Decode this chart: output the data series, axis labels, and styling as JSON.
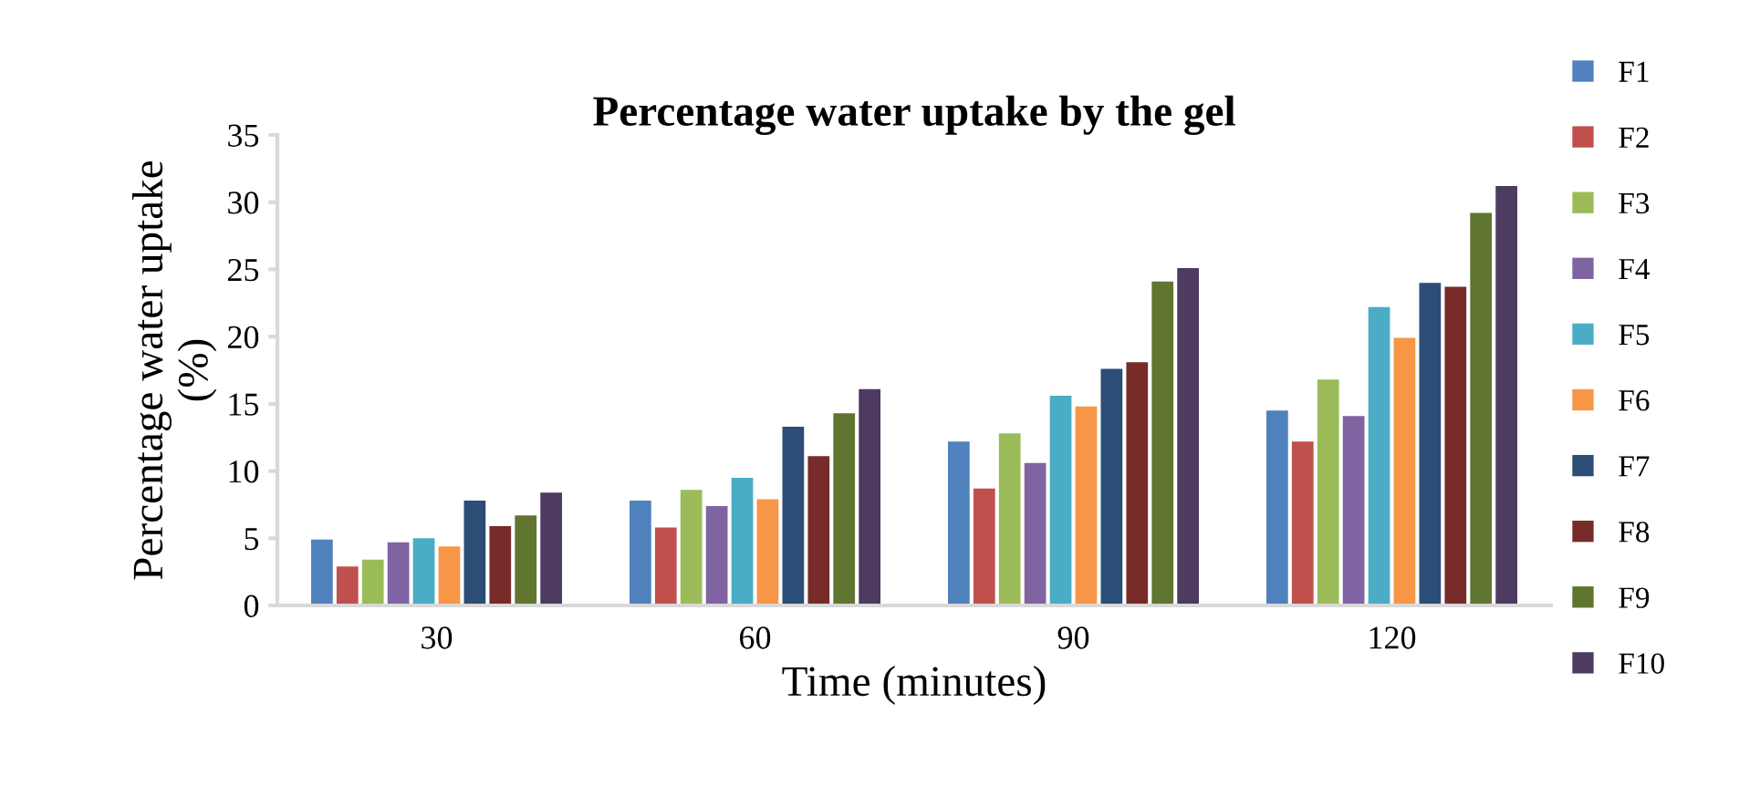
{
  "chart_data": {
    "type": "bar",
    "title": "Percentage water uptake by the gel",
    "xlabel": "Time (minutes)",
    "ylabel": "Percentage water uptake\n(%)",
    "categories": [
      "30",
      "60",
      "90",
      "120"
    ],
    "series": [
      {
        "name": "F1",
        "color": "#4f81bd",
        "values": [
          4.9,
          7.8,
          12.2,
          14.5
        ]
      },
      {
        "name": "F2",
        "color": "#c0504d",
        "values": [
          2.9,
          5.8,
          8.7,
          12.2
        ]
      },
      {
        "name": "F3",
        "color": "#9bbb59",
        "values": [
          3.4,
          8.6,
          12.8,
          16.8
        ]
      },
      {
        "name": "F4",
        "color": "#8064a2",
        "values": [
          4.7,
          7.4,
          10.6,
          14.1
        ]
      },
      {
        "name": "F5",
        "color": "#4bacc6",
        "values": [
          5.0,
          9.5,
          15.6,
          22.2
        ]
      },
      {
        "name": "F6",
        "color": "#f79646",
        "values": [
          4.4,
          7.9,
          14.8,
          19.9
        ]
      },
      {
        "name": "F7",
        "color": "#2c4d75",
        "values": [
          7.8,
          13.3,
          17.6,
          24.0
        ]
      },
      {
        "name": "F8",
        "color": "#772c2a",
        "values": [
          5.9,
          11.1,
          18.1,
          23.7
        ]
      },
      {
        "name": "F9",
        "color": "#5f7530",
        "values": [
          6.7,
          14.3,
          24.1,
          29.2
        ]
      },
      {
        "name": "F10",
        "color": "#4d3b62",
        "values": [
          8.4,
          16.1,
          25.1,
          31.2
        ]
      }
    ],
    "ylim": [
      0,
      35
    ],
    "yticks": [
      0,
      5,
      10,
      15,
      20,
      25,
      30,
      35
    ],
    "grid": false,
    "legend": "right"
  }
}
